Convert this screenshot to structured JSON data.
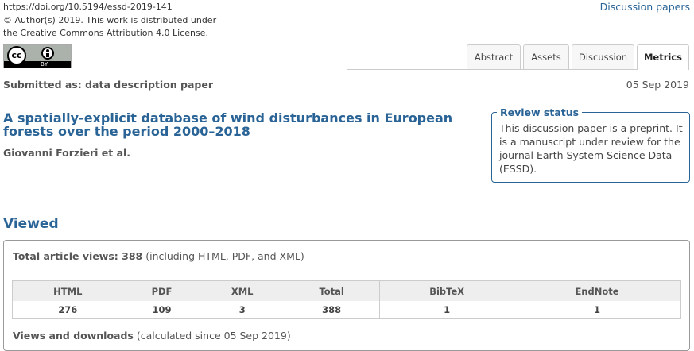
{
  "header": {
    "doi": "https://doi.org/10.5194/essd-2019-141",
    "copyright": "© Author(s) 2019. This work is distributed under",
    "license": "the Creative Commons Attribution 4.0 License.",
    "discussion_link": "Discussion papers",
    "cc_badge": {
      "cc_label": "cc",
      "by_label": "BY"
    }
  },
  "tabs": [
    {
      "label": "Abstract",
      "active": false
    },
    {
      "label": "Assets",
      "active": false
    },
    {
      "label": "Discussion",
      "active": false
    },
    {
      "label": "Metrics",
      "active": true
    }
  ],
  "article": {
    "submitted_as": "Submitted as: data description paper",
    "date": "05 Sep 2019",
    "title": "A spatially-explicit database of wind disturbances in European forests over the period 2000–2018",
    "authors": "Giovanni Forzieri et al."
  },
  "review_status": {
    "heading": "Review status",
    "text": "This discussion paper is a preprint. It is a manuscript under review for the journal Earth System Science Data (ESSD)."
  },
  "viewed": {
    "heading": "Viewed",
    "total_label": "Total article views: 388",
    "total_note": "(including HTML, PDF, and XML)",
    "columns": [
      "HTML",
      "PDF",
      "XML",
      "Total",
      "BibTeX",
      "EndNote"
    ],
    "values": [
      "276",
      "109",
      "3",
      "388",
      "1",
      "1"
    ],
    "downloads_label": "Views and downloads",
    "downloads_note": "(calculated since 05 Sep 2019)"
  },
  "colors": {
    "link": "#2a6496",
    "text": "#333333",
    "table_header": "#eeeeee"
  }
}
